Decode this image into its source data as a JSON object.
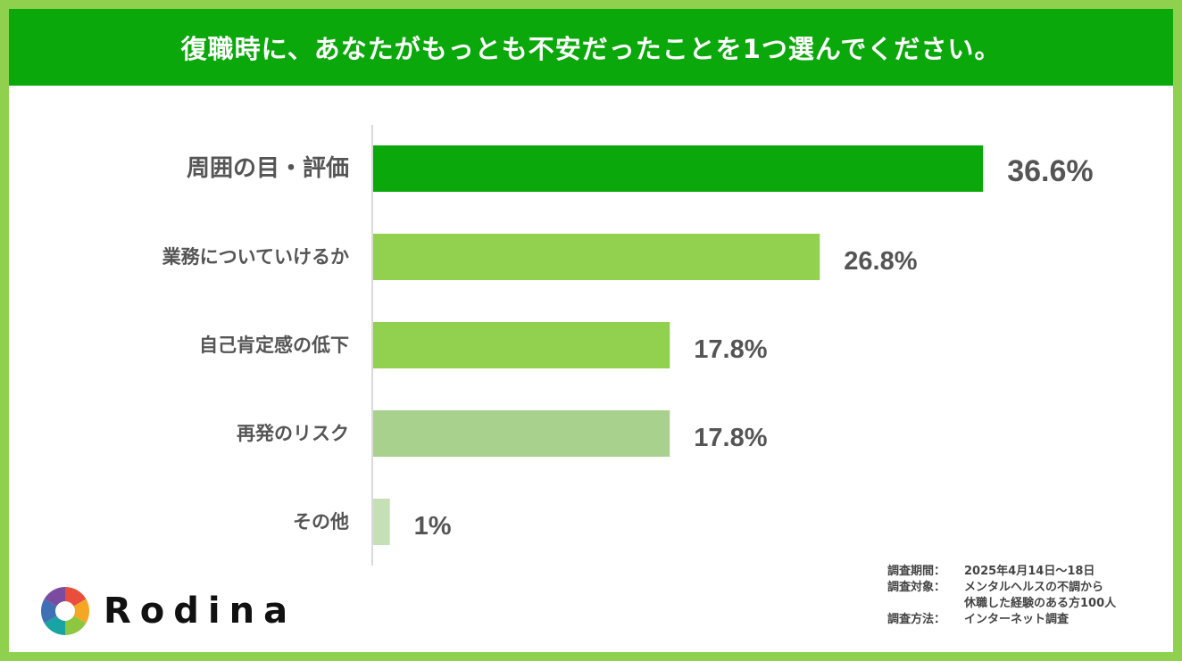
{
  "title": "復職時に、あなたがもっとも不安だったことを1つ選んでください。",
  "chart_data": {
    "type": "bar",
    "orientation": "horizontal",
    "categories": [
      "周囲の目・評価",
      "業務についていけるか",
      "自己肯定感の低下",
      "再発のリスク",
      "その他"
    ],
    "values": [
      36.6,
      26.8,
      17.8,
      17.8,
      1
    ],
    "value_labels": [
      "36.6%",
      "26.8%",
      "17.8%",
      "17.8%",
      "1%"
    ],
    "highlight_index": 0,
    "colors": [
      "#0aa80a",
      "#92d050",
      "#92d050",
      "#a9d18e",
      "#c5e0b4"
    ],
    "highlight_text_color": "#0aa80a",
    "text_color": "#555555",
    "axis_color": "#d9d9d9",
    "xlim": [
      0,
      37.5
    ],
    "grid": false
  },
  "logo": {
    "name": "Rodina",
    "icon": "aperture-logo-icon"
  },
  "notes": {
    "period_label": "調査期間：",
    "period_value": "2025年4月14日～18日",
    "target_label": "調査対象：",
    "target_value_1": "メンタルヘルスの不調から",
    "target_value_2": "休職した経験のある方100人",
    "method_label": "調査方法：",
    "method_value": "インターネット調査"
  },
  "frame_color": "#8fd14f",
  "header_color": "#0aa80a"
}
